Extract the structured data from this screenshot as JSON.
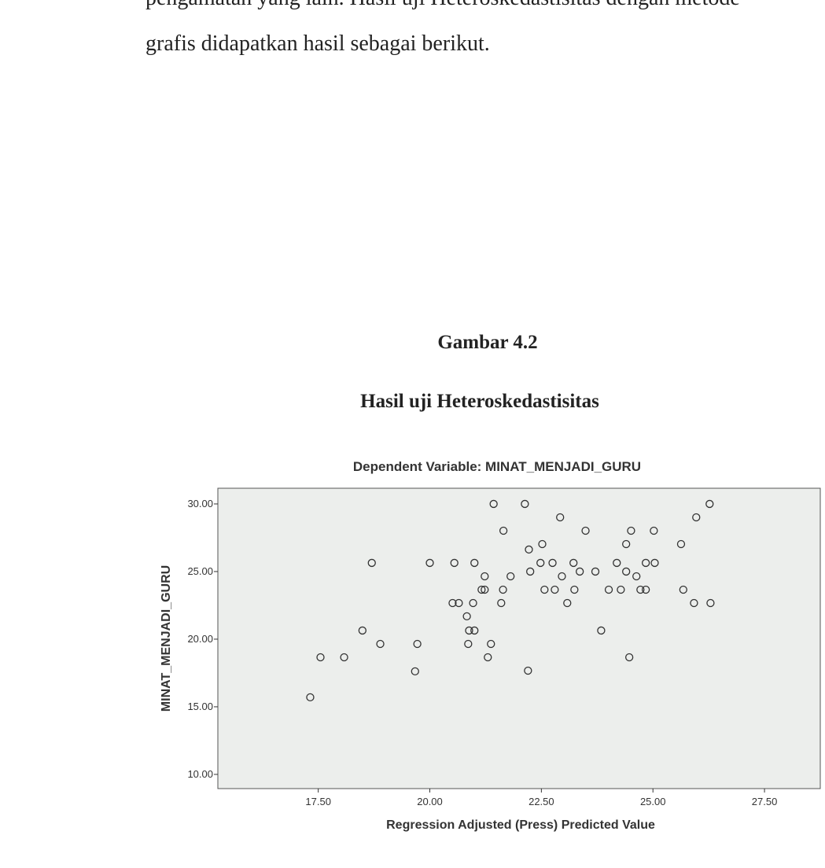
{
  "document": {
    "lines": [
      "pengamatan yang lain. Hasil uji Heteroskedastisitas dengan metode",
      "grafis didapatkan hasil sebagai berikut."
    ],
    "caption": [
      "Gambar 4.2",
      "Hasil uji Heteroskedastisitas"
    ]
  },
  "chart_data": {
    "type": "scatter",
    "title": "Dependent Variable: MINAT_MENJADI_GURU",
    "x_label": "Regression Adjusted (Press) Predicted Value",
    "y_label": "MINAT_MENJADI_GURU",
    "x": [
      17.32,
      17.55,
      18.08,
      18.49,
      18.89,
      18.7,
      19.67,
      19.72,
      20.0,
      20.55,
      20.51,
      20.65,
      20.83,
      20.88,
      20.86,
      20.97,
      21.0,
      21.0,
      21.16,
      21.23,
      21.23,
      21.3,
      21.37,
      21.43,
      21.65,
      21.64,
      21.6,
      21.81,
      22.13,
      22.22,
      22.25,
      22.2,
      22.48,
      22.57,
      22.52,
      22.75,
      22.8,
      22.92,
      22.96,
      23.08,
      23.22,
      23.24,
      23.36,
      23.49,
      23.71,
      23.84,
      24.01,
      24.19,
      24.28,
      24.4,
      24.4,
      24.47,
      24.51,
      24.63,
      24.72,
      24.84,
      24.84,
      25.04,
      25.02,
      25.63,
      25.68,
      25.92,
      25.97,
      26.27,
      26.29
    ],
    "y": [
      15.7,
      18.66,
      18.66,
      20.64,
      19.65,
      25.64,
      17.62,
      19.65,
      25.64,
      25.64,
      22.67,
      22.67,
      21.69,
      20.64,
      19.65,
      22.67,
      20.64,
      25.64,
      23.66,
      24.65,
      23.66,
      18.66,
      19.65,
      30.0,
      28.02,
      23.66,
      22.67,
      24.65,
      30.0,
      26.63,
      25.0,
      17.67,
      25.64,
      23.66,
      27.03,
      25.64,
      23.66,
      29.01,
      24.65,
      22.67,
      25.64,
      23.66,
      25.0,
      28.02,
      25.0,
      20.64,
      23.66,
      25.64,
      23.66,
      25.0,
      27.03,
      18.66,
      28.02,
      24.65,
      23.66,
      25.64,
      23.66,
      25.64,
      28.02,
      27.03,
      23.66,
      22.67,
      29.01,
      30.0,
      22.67
    ],
    "xlim": [
      15.25,
      28.75
    ],
    "ylim": [
      8.95,
      31.16
    ],
    "xticks": [
      {
        "value": 17.5,
        "label": "17.50"
      },
      {
        "value": 20,
        "label": "20.00"
      },
      {
        "value": 22.5,
        "label": "22.50"
      },
      {
        "value": 25,
        "label": "25.00"
      },
      {
        "value": 27.5,
        "label": "27.50"
      }
    ],
    "yticks": [
      {
        "value": 10,
        "label": "10.00"
      },
      {
        "value": 15,
        "label": "15.00"
      },
      {
        "value": 20,
        "label": "20.00"
      },
      {
        "value": 25,
        "label": "25.00"
      },
      {
        "value": 30,
        "label": "30.00"
      }
    ],
    "color": "#333333",
    "background": "#eceeec"
  }
}
